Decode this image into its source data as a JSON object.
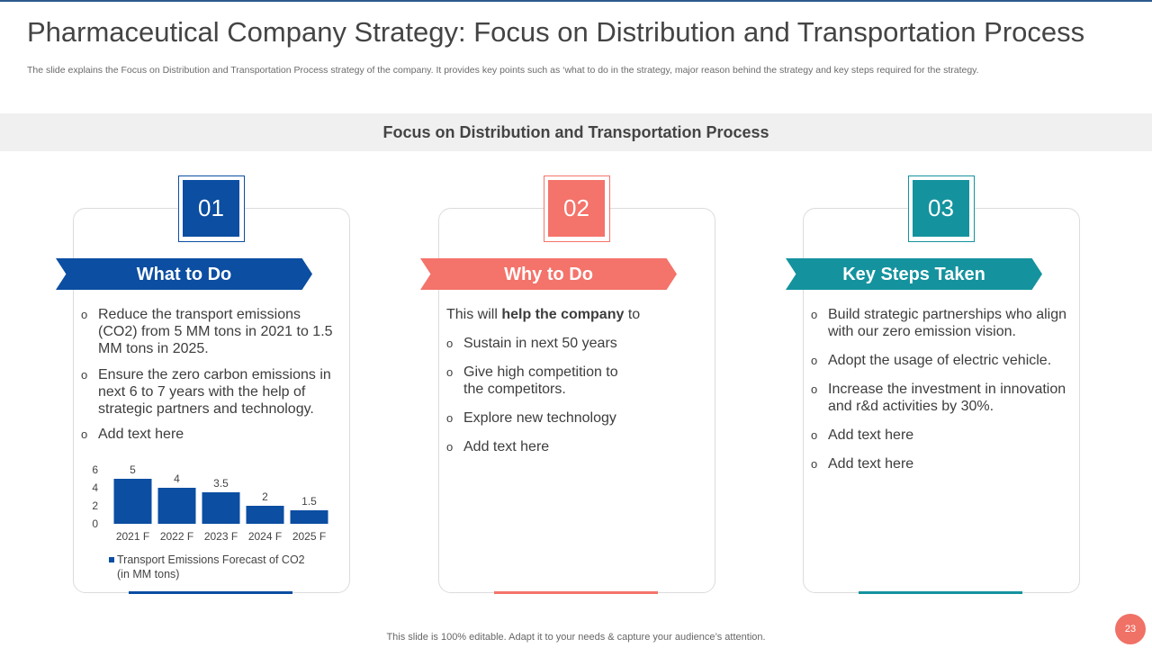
{
  "slide": {
    "title": "Pharmaceutical Company Strategy: Focus on Distribution and Transportation Process",
    "subtitle": "The slide explains the Focus on Distribution and Transportation Process strategy of the company. It provides key points such as ‘what to do in the strategy, major reason behind the strategy and key steps required for the strategy.",
    "banner": "Focus on Distribution and Transportation Process",
    "footer": "This slide is 100% editable. Adapt it to your needs & capture your audience’s attention.",
    "page_number": "23"
  },
  "colors": {
    "blue": "#0b4ea2",
    "coral": "#f4736a",
    "teal": "#14939e"
  },
  "cards": [
    {
      "number": "01",
      "heading": "What to Do",
      "bullets": [
        "Reduce the transport emissions (CO2) from 5 MM tons in 2021 to 1.5 MM tons in 2025.",
        "Ensure the zero carbon emissions in next 6 to 7 years with the help of strategic partners and technology.",
        "Add text here"
      ]
    },
    {
      "number": "02",
      "heading": "Why to Do",
      "intro_prefix": "This will ",
      "intro_bold": "help the company",
      "intro_suffix": " to",
      "bullets": [
        "Sustain in next 50 years",
        "Give high competition to the competitors.",
        "Explore new technology",
        "Add text here"
      ]
    },
    {
      "number": "03",
      "heading": "Key Steps Taken",
      "bullets": [
        "Build strategic partnerships who align with our zero emission vision.",
        "Adopt the usage of electric vehicle.",
        "Increase the investment in innovation and r&d activities by 30%.",
        "Add text here",
        "Add text here"
      ]
    }
  ],
  "chart_data": {
    "type": "bar",
    "categories": [
      "2021 F",
      "2022 F",
      "2023 F",
      "2024 F",
      "2025 F"
    ],
    "series": [
      {
        "name": "Transport Emissions Forecast of CO2 (in MM tons)",
        "values": [
          5,
          4,
          3.5,
          2,
          1.5
        ]
      }
    ],
    "data_labels": [
      "5",
      "4",
      "3.5",
      "2",
      "1.5"
    ],
    "yticks": [
      "0",
      "2",
      "4",
      "6"
    ],
    "ylim": [
      0,
      6
    ],
    "grid": false,
    "legend_position": "bottom",
    "legend_line1": "Transport Emissions Forecast of CO2",
    "legend_line2": "(in MM tons)",
    "color": "#0b4ea2"
  }
}
